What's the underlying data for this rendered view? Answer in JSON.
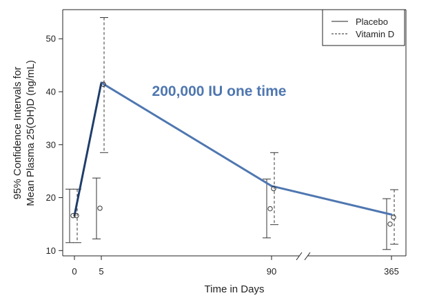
{
  "chart_data": {
    "type": "line",
    "xlabel": "Time in Days",
    "ylabel_lines": [
      "95% Confidence Intervals for",
      "Mean Plasma 25(OH)D (ng/mL)"
    ],
    "x_ticks": [
      "0",
      "5",
      "90",
      "365"
    ],
    "y_ticks": [
      10,
      20,
      30,
      40,
      50
    ],
    "ylim": [
      9,
      55.5
    ],
    "x_axis_break": "between 90 and 365",
    "annotation": "200,000 IU one time",
    "series": [
      {
        "name": "Placebo",
        "style": "solid",
        "points": [
          {
            "day": "0",
            "mean": 16.6,
            "lower": 11.5,
            "upper": 21.6
          },
          {
            "day": "5",
            "mean": 18.0,
            "lower": 12.2,
            "upper": 23.7
          },
          {
            "day": "90",
            "mean": 17.9,
            "lower": 12.4,
            "upper": 23.5
          },
          {
            "day": "365",
            "mean": 15.0,
            "lower": 10.2,
            "upper": 19.8
          }
        ]
      },
      {
        "name": "Vitamin D",
        "style": "dashed",
        "points": [
          {
            "day": "0",
            "mean": 16.6,
            "lower": 11.5,
            "upper": 21.6
          },
          {
            "day": "5",
            "mean": 41.4,
            "lower": 28.5,
            "upper": 54.0
          },
          {
            "day": "90",
            "mean": 21.7,
            "lower": 14.9,
            "upper": 28.5
          },
          {
            "day": "365",
            "mean": 16.3,
            "lower": 11.2,
            "upper": 21.5
          }
        ]
      }
    ],
    "trend_line": {
      "color": "#4f77b0",
      "segment_colors": [
        "#1f3d6b",
        "#4f77b0",
        "#4f77b0"
      ],
      "points": [
        {
          "day": "0",
          "value": 16.6
        },
        {
          "day": "5",
          "value": 41.7
        },
        {
          "day": "90",
          "value": 22.2
        },
        {
          "day": "365",
          "value": 16.8
        }
      ]
    },
    "legend": {
      "position": "top-right",
      "entries": [
        "Placebo",
        "Vitamin D"
      ]
    },
    "grid": false,
    "colors": {
      "axis": "#222222",
      "error_bars": "#333333",
      "annotation": "#4f77b0"
    }
  }
}
